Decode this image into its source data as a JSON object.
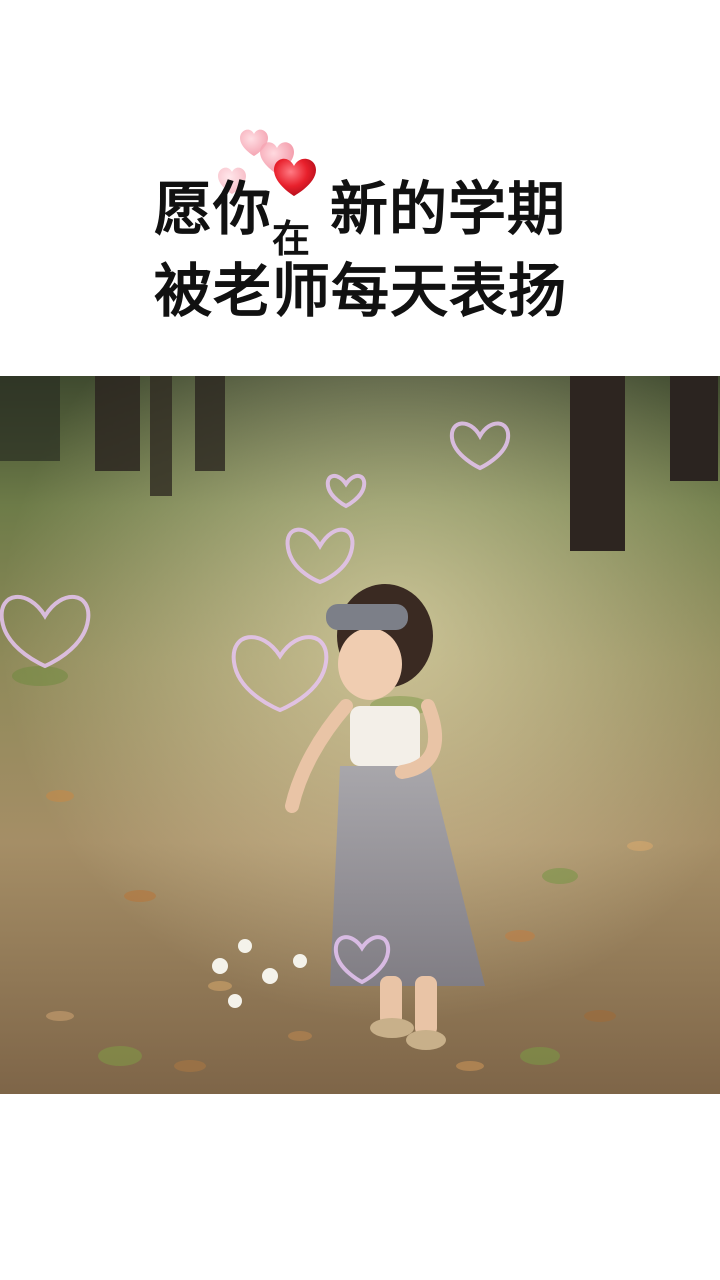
{
  "title": {
    "line1_part1": "愿你",
    "line1_small": "在",
    "line1_part2": "新的学期",
    "line2": "被老师每天表扬"
  },
  "colors": {
    "title_text": "#111111",
    "heart_red": "#e8202c",
    "heart_pink": "#f39aa6",
    "background": "#ffffff"
  },
  "photo": {
    "subject": "girl-in-grey-tulle-dress",
    "icons": [
      "heart-bubble-icon"
    ]
  }
}
